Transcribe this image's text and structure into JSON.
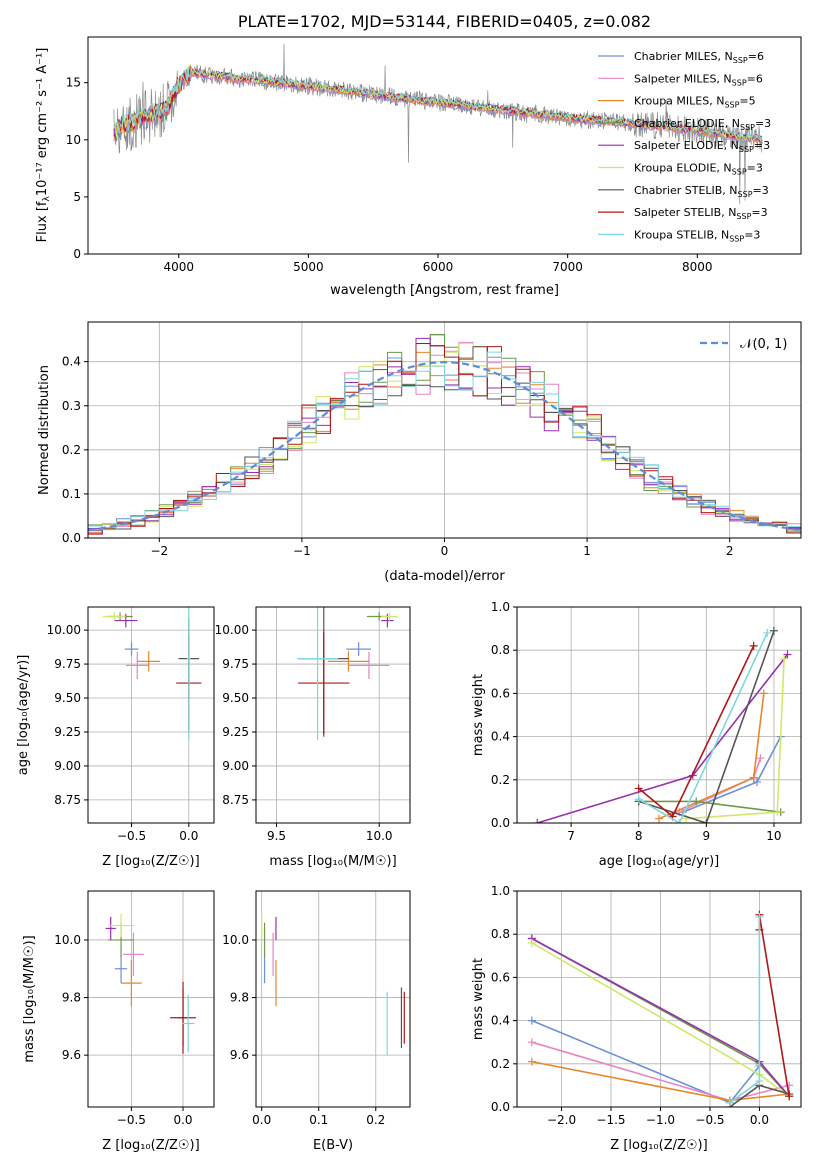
{
  "chart_data": [
    {
      "id": "spectrum",
      "type": "line",
      "title": "PLATE=1702, MJD=53144, FIBERID=0405, z=0.082",
      "xlabel": "wavelength [Angstrom, rest frame]",
      "ylabel_main": "Flux [f",
      "ylabel_sub": "λ",
      "ylabel_rest": "10⁻¹⁷ erg cm⁻² s⁻¹ A⁻¹]",
      "xlim": [
        3300,
        8800
      ],
      "ylim": [
        0,
        19
      ],
      "xticks": [
        "4000",
        "5000",
        "6000",
        "7000",
        "8000"
      ],
      "yticks": [
        "0",
        "5",
        "10",
        "15"
      ],
      "legend_position": "top-right",
      "legend": [
        {
          "name": "Chabrier MILES, N",
          "sub": "SSP",
          "suffix": "=6",
          "color": "#6b8fd9"
        },
        {
          "name": "Salpeter MILES, N",
          "sub": "SSP",
          "suffix": "=6",
          "color": "#e786c2"
        },
        {
          "name": "Kroupa MILES, N",
          "sub": "SSP",
          "suffix": "=5",
          "color": "#e8862a"
        },
        {
          "name": "Chabrier ELODIE, N",
          "sub": "SSP",
          "suffix": "=3",
          "color": "#6a9a4a"
        },
        {
          "name": "Salpeter ELODIE, N",
          "sub": "SSP",
          "suffix": "=3",
          "color": "#9a2fb0"
        },
        {
          "name": "Kroupa ELODIE, N",
          "sub": "SSP",
          "suffix": "=3",
          "color": "#cfe86a"
        },
        {
          "name": "Chabrier STELIB, N",
          "sub": "SSP",
          "suffix": "=3",
          "color": "#555555"
        },
        {
          "name": "Salpeter STELIB, N",
          "sub": "SSP",
          "suffix": "=3",
          "color": "#b01717"
        },
        {
          "name": "Kroupa STELIB, N",
          "sub": "SSP",
          "suffix": "=3",
          "color": "#7ed6e0"
        }
      ],
      "continuum": {
        "x": [
          3500,
          3700,
          3900,
          4000,
          4100,
          4300,
          4500,
          4700,
          5000,
          5300,
          5600,
          5900,
          6200,
          6500,
          6800,
          7100,
          7400,
          7700,
          8000,
          8300,
          8500
        ],
        "y": [
          10.8,
          11.8,
          12.6,
          14.8,
          15.9,
          15.6,
          15.3,
          15.1,
          14.7,
          14.3,
          13.8,
          13.4,
          13.0,
          12.6,
          12.2,
          11.8,
          11.5,
          11.2,
          10.8,
          10.3,
          10.0
        ]
      }
    },
    {
      "id": "residuals",
      "type": "bar",
      "xlabel": "(data-model)/error",
      "ylabel": "Normed distribution",
      "xlim": [
        -2.5,
        2.5
      ],
      "ylim": [
        0,
        0.49
      ],
      "xticks": [
        "−2",
        "−1",
        "0",
        "1",
        "2"
      ],
      "yticks": [
        "0.0",
        "0.1",
        "0.2",
        "0.3",
        "0.4"
      ],
      "legend_position": "top-right",
      "legend": [
        {
          "name": "𝒩(0, 1)",
          "color": "#5b8dd9",
          "style": "dashed"
        }
      ],
      "bin_width": 0.1
    },
    {
      "id": "age_vs_Z",
      "type": "scatter",
      "xlabel": "Z [log₁₀(Z/Z☉)]",
      "ylabel": "age  [log₁₀(age/yr)]",
      "xlim": [
        -0.88,
        0.22
      ],
      "ylim": [
        8.58,
        10.17
      ],
      "xticks": [
        "−0.5",
        "0.0"
      ],
      "yticks": [
        "8.75",
        "9.00",
        "9.25",
        "9.50",
        "9.75",
        "10.00"
      ],
      "points": [
        {
          "model": 0,
          "x": -0.5,
          "y": 9.86,
          "ex": 0.12,
          "ey": 0.1
        },
        {
          "model": 1,
          "x": -0.45,
          "y": 9.74,
          "ex": 0.2,
          "ey": 0.2
        },
        {
          "model": 2,
          "x": -0.35,
          "y": 9.77,
          "ex": 0.2,
          "ey": 0.15
        },
        {
          "model": 3,
          "x": -0.6,
          "y": 10.1,
          "ex": 0.22,
          "ey": 0.06
        },
        {
          "model": 4,
          "x": -0.55,
          "y": 10.07,
          "ex": 0.2,
          "ey": 0.1
        },
        {
          "model": 5,
          "x": -0.65,
          "y": 10.1,
          "ex": 0.2,
          "ey": 0.06
        },
        {
          "model": 6,
          "x": 0.0,
          "y": 9.79,
          "ex": 0.18,
          "ey": 0.6
        },
        {
          "model": 7,
          "x": 0.0,
          "y": 9.61,
          "ex": 0.22,
          "ey": 0.7
        },
        {
          "model": 8,
          "x": 0.0,
          "y": 9.79,
          "ex": 0.03,
          "ey": 1.2
        }
      ]
    },
    {
      "id": "age_vs_mass",
      "type": "scatter",
      "xlabel": "mass [log₁₀(M/M☉)]",
      "ylabel": "",
      "xlim": [
        9.4,
        10.15
      ],
      "ylim": [
        8.58,
        10.17
      ],
      "xticks": [
        "9.5",
        "10.0"
      ],
      "yticks": [
        "8.75",
        "9.00",
        "9.25",
        "9.50",
        "9.75",
        "10.00"
      ],
      "points": [
        {
          "model": 0,
          "x": 9.9,
          "y": 9.86,
          "ex": 0.12,
          "ey": 0.1
        },
        {
          "model": 1,
          "x": 9.95,
          "y": 9.74,
          "ex": 0.2,
          "ey": 0.2
        },
        {
          "model": 2,
          "x": 9.85,
          "y": 9.77,
          "ex": 0.2,
          "ey": 0.15
        },
        {
          "model": 3,
          "x": 10.0,
          "y": 10.1,
          "ex": 0.12,
          "ey": 0.06
        },
        {
          "model": 4,
          "x": 10.04,
          "y": 10.07,
          "ex": 0.06,
          "ey": 0.1
        },
        {
          "model": 5,
          "x": 10.05,
          "y": 10.1,
          "ex": 0.08,
          "ey": 0.06
        },
        {
          "model": 6,
          "x": 9.73,
          "y": 9.79,
          "ex": 0.24,
          "ey": 1.15
        },
        {
          "model": 7,
          "x": 9.73,
          "y": 9.61,
          "ex": 0.25,
          "ey": 0.75
        },
        {
          "model": 8,
          "x": 9.7,
          "y": 9.79,
          "ex": 0.2,
          "ey": 1.2
        }
      ]
    },
    {
      "id": "mass_weight_vs_age",
      "type": "line",
      "xlabel": "age  [log₁₀(age/yr)]",
      "ylabel": "mass weight",
      "xlim": [
        6.2,
        10.4
      ],
      "ylim": [
        0,
        1
      ],
      "xticks": [
        "7",
        "8",
        "9",
        "10"
      ],
      "yticks": [
        "0.0",
        "0.2",
        "0.4",
        "0.6",
        "0.8",
        "1.0"
      ],
      "series": [
        {
          "model": 0,
          "x": [
            8.65,
            9.75,
            10.1
          ],
          "y": [
            0.05,
            0.19,
            0.4
          ]
        },
        {
          "model": 1,
          "x": [
            8.6,
            9.7,
            9.8
          ],
          "y": [
            0.05,
            0.21,
            0.3
          ]
        },
        {
          "model": 2,
          "x": [
            8.3,
            9.7,
            9.85
          ],
          "y": [
            0.02,
            0.21,
            0.6
          ]
        },
        {
          "model": 3,
          "x": [
            8.0,
            8.85,
            10.1
          ],
          "y": [
            0.1,
            0.1,
            0.05
          ]
        },
        {
          "model": 4,
          "x": [
            6.5,
            8.8,
            10.2
          ],
          "y": [
            0.0,
            0.22,
            0.78
          ]
        },
        {
          "model": 5,
          "x": [
            8.7,
            10.05,
            10.15
          ],
          "y": [
            0.02,
            0.05,
            0.76
          ]
        },
        {
          "model": 6,
          "x": [
            8.0,
            9.0,
            10.0
          ],
          "y": [
            0.1,
            0.0,
            0.89
          ]
        },
        {
          "model": 7,
          "x": [
            8.0,
            8.5,
            9.7
          ],
          "y": [
            0.16,
            0.03,
            0.82
          ]
        },
        {
          "model": 8,
          "x": [
            8.0,
            8.6,
            9.9
          ],
          "y": [
            0.11,
            0.0,
            0.88
          ]
        }
      ]
    },
    {
      "id": "mass_vs_Z",
      "type": "scatter",
      "xlabel": "Z [log₁₀(Z/Z☉)]",
      "ylabel": "mass [log₁₀(M/M☉)]",
      "xlim": [
        -0.92,
        0.3
      ],
      "ylim": [
        9.42,
        10.17
      ],
      "xticks": [
        "−0.5",
        "0.0"
      ],
      "yticks": [
        "9.6",
        "9.8",
        "10.0"
      ],
      "points": [
        {
          "model": 0,
          "x": -0.6,
          "y": 9.9,
          "ex": 0.12,
          "ey": 0.1
        },
        {
          "model": 1,
          "x": -0.48,
          "y": 9.95,
          "ex": 0.2,
          "ey": 0.15
        },
        {
          "model": 2,
          "x": -0.5,
          "y": 9.85,
          "ex": 0.2,
          "ey": 0.16
        },
        {
          "model": 3,
          "x": -0.6,
          "y": 10.0,
          "ex": 0.25,
          "ey": 0.12
        },
        {
          "model": 4,
          "x": -0.7,
          "y": 10.04,
          "ex": 0.1,
          "ey": 0.08
        },
        {
          "model": 5,
          "x": -0.6,
          "y": 10.05,
          "ex": 0.25,
          "ey": 0.08
        },
        {
          "model": 6,
          "x": 0.0,
          "y": 9.73,
          "ex": 0.1,
          "ey": 0.2
        },
        {
          "model": 7,
          "x": 0.0,
          "y": 9.73,
          "ex": 0.25,
          "ey": 0.25
        },
        {
          "model": 8,
          "x": 0.05,
          "y": 9.71,
          "ex": 0.12,
          "ey": 0.2
        }
      ]
    },
    {
      "id": "mass_vs_EBV",
      "type": "scatter",
      "xlabel": "E(B-V)",
      "ylabel": "",
      "xlim": [
        -0.01,
        0.26
      ],
      "ylim": [
        9.42,
        10.17
      ],
      "xticks": [
        "0.0",
        "0.1",
        "0.2"
      ],
      "yticks": [
        "9.6",
        "9.8",
        "10.0"
      ],
      "points": [
        {
          "model": 0,
          "x": 0.005,
          "y": 9.9,
          "ey": 0.1
        },
        {
          "model": 1,
          "x": 0.02,
          "y": 9.95,
          "ey": 0.15
        },
        {
          "model": 2,
          "x": 0.025,
          "y": 9.85,
          "ey": 0.16
        },
        {
          "model": 3,
          "x": 0.005,
          "y": 10.0,
          "ey": 0.12
        },
        {
          "model": 4,
          "x": 0.025,
          "y": 10.04,
          "ey": 0.08
        },
        {
          "model": 5,
          "x": 0.0,
          "y": 10.05,
          "ey": 0.08
        },
        {
          "model": 6,
          "x": 0.245,
          "y": 9.73,
          "ey": 0.21
        },
        {
          "model": 7,
          "x": 0.25,
          "y": 9.73,
          "ey": 0.18
        },
        {
          "model": 8,
          "x": 0.22,
          "y": 9.71,
          "ey": 0.22
        }
      ]
    },
    {
      "id": "mass_weight_vs_Z",
      "type": "line",
      "xlabel": "Z [log₁₀(Z/Z☉)]",
      "ylabel": "mass weight",
      "xlim": [
        -2.45,
        0.42
      ],
      "ylim": [
        0,
        1
      ],
      "xticks": [
        "−2.0",
        "−1.5",
        "−1.0",
        "−0.5",
        "0.0"
      ],
      "yticks": [
        "0.0",
        "0.2",
        "0.4",
        "0.6",
        "0.8",
        "1.0"
      ],
      "series": [
        {
          "model": 0,
          "x": [
            -2.3,
            -0.3,
            0.0
          ],
          "y": [
            0.4,
            0.02,
            0.19
          ]
        },
        {
          "model": 1,
          "x": [
            -2.3,
            -0.3,
            0.3
          ],
          "y": [
            0.3,
            0.03,
            0.1
          ]
        },
        {
          "model": 2,
          "x": [
            -2.3,
            -0.3,
            0.3
          ],
          "y": [
            0.21,
            0.03,
            0.06
          ]
        },
        {
          "model": 3,
          "x": [
            -2.3,
            0.0,
            0.3
          ],
          "y": [
            0.78,
            0.2,
            0.05
          ]
        },
        {
          "model": 4,
          "x": [
            -2.3,
            0.0,
            0.3
          ],
          "y": [
            0.78,
            0.21,
            0.05
          ]
        },
        {
          "model": 5,
          "x": [
            -2.3,
            0.0,
            0.3
          ],
          "y": [
            0.76,
            0.15,
            0.05
          ]
        },
        {
          "model": 6,
          "x": [
            -0.3,
            0.0,
            0.3
          ],
          "y": [
            0.0,
            0.1,
            0.06
          ]
        },
        {
          "model": 7,
          "x": [
            0.0,
            0.0,
            0.3
          ],
          "y": [
            0.82,
            0.89,
            0.05
          ]
        },
        {
          "model": 8,
          "x": [
            -0.3,
            0.0,
            0.0
          ],
          "y": [
            0.02,
            0.12,
            0.88
          ]
        }
      ]
    }
  ],
  "colors": [
    "#6b8fd9",
    "#e786c2",
    "#e8862a",
    "#6a9a4a",
    "#9a2fb0",
    "#cfe86a",
    "#555555",
    "#b01717",
    "#7ed6e0"
  ]
}
